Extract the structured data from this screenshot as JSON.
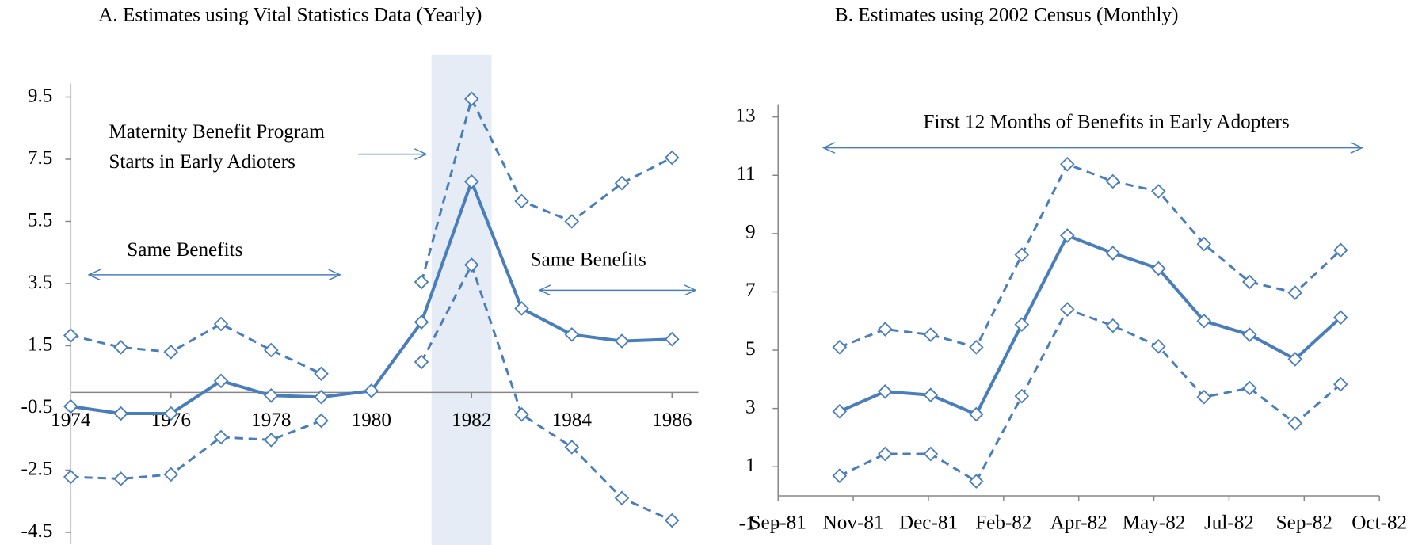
{
  "chart_data": [
    {
      "type": "line",
      "title": "A. Estimates using Vital Statistics Data (Yearly)",
      "x": [
        1974,
        1975,
        1976,
        1977,
        1978,
        1979,
        1980,
        1981,
        1982,
        1983,
        1984,
        1985,
        1986
      ],
      "xlim": [
        1974,
        1986
      ],
      "xticks": [
        1974,
        1976,
        1978,
        1980,
        1982,
        1984,
        1986
      ],
      "ylim": [
        -4.5,
        9.5
      ],
      "yticks": [
        -4.5,
        -2.5,
        -0.5,
        1.5,
        3.5,
        5.5,
        7.5,
        9.5
      ],
      "shade": [
        1981.2,
        1982.4
      ],
      "annotations": [
        "Maternity Benefit Program",
        "Starts in Early Adioters",
        "Same Benefits",
        "Same Benefits"
      ],
      "series": [
        {
          "color": "#4a7ebb",
          "style": "solid",
          "values": [
            -0.45,
            -0.68,
            -0.68,
            0.37,
            -0.1,
            -0.15,
            0.05,
            2.26,
            6.78,
            2.7,
            1.86,
            1.65,
            1.71
          ]
        },
        {
          "color": "#4a7ebb",
          "style": "dashed",
          "values": [
            1.83,
            1.45,
            1.3,
            2.2,
            1.36,
            0.6,
            null,
            3.55,
            9.44,
            6.15,
            5.5,
            6.73,
            7.55
          ]
        },
        {
          "color": "#4a7ebb",
          "style": "dashed",
          "values": [
            -2.72,
            -2.78,
            -2.64,
            -1.44,
            -1.53,
            -0.91,
            null,
            0.98,
            4.1,
            -0.71,
            -1.76,
            -3.4,
            -4.12
          ]
        }
      ]
    },
    {
      "type": "line",
      "title": "B. Estimates using 2002 Census (Monthly)",
      "x": [
        0,
        1,
        2,
        3,
        4,
        5,
        6,
        7,
        8,
        9,
        10,
        11
      ],
      "xlim": [
        -1.35,
        11.85
      ],
      "xticks": [
        {
          "value": -1.35,
          "label": "Sep-81"
        },
        {
          "value": 0.3,
          "label": "Nov-81"
        },
        {
          "value": 1.95,
          "label": "Dec-81"
        },
        {
          "value": 3.6,
          "label": "Feb-82"
        },
        {
          "value": 5.25,
          "label": "Apr-82"
        },
        {
          "value": 6.9,
          "label": "May-82"
        },
        {
          "value": 8.55,
          "label": "Jul-82"
        },
        {
          "value": 10.2,
          "label": "Sep-82"
        },
        {
          "value": 11.85,
          "label": "Oct-82"
        }
      ],
      "ylim": [
        -1,
        13
      ],
      "yticks": [
        -1,
        1,
        3,
        5,
        7,
        9,
        11,
        13
      ],
      "annotations": [
        "First 12 Months of Benefits in Early Adopters"
      ],
      "series": [
        {
          "color": "#4a7ebb",
          "style": "solid",
          "values": [
            2.9,
            3.58,
            3.46,
            2.8,
            5.88,
            8.93,
            8.33,
            7.8,
            6.0,
            5.53,
            4.69,
            6.12
          ]
        },
        {
          "color": "#4a7ebb",
          "style": "dashed",
          "values": [
            5.1,
            5.72,
            5.53,
            5.1,
            8.27,
            11.38,
            10.79,
            10.45,
            8.64,
            7.34,
            6.97,
            8.43
          ]
        },
        {
          "color": "#4a7ebb",
          "style": "dashed",
          "values": [
            0.69,
            1.44,
            1.44,
            0.5,
            3.42,
            6.4,
            5.84,
            5.13,
            3.39,
            3.7,
            2.49,
            3.83
          ]
        }
      ]
    }
  ]
}
